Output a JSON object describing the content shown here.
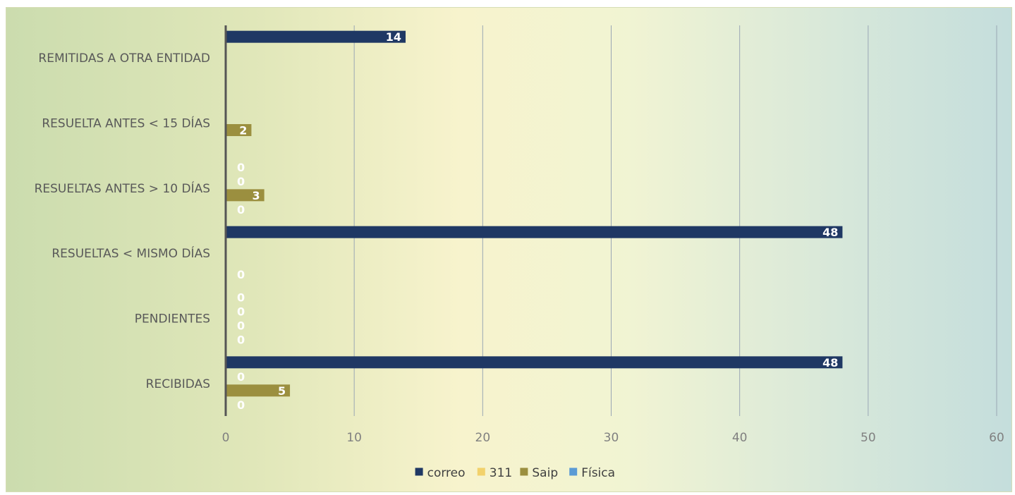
{
  "chart_data": {
    "type": "bar",
    "orientation": "horizontal",
    "categories": [
      "REMITIDAS A OTRA ENTIDAD",
      "RESUELTA ANTES < 15 DÍAS",
      "RESUELTAS ANTES > 10 DÍAS",
      "RESUELTAS < MISMO DÍAS",
      "PENDIENTES",
      "RECIBIDAS"
    ],
    "series": [
      {
        "name": "correo",
        "color": "#1f3864",
        "values": [
          14,
          null,
          0,
          48,
          0,
          48
        ]
      },
      {
        "name": "311",
        "color": "#f2d16b",
        "values": [
          null,
          null,
          0,
          null,
          0,
          0
        ]
      },
      {
        "name": "Saip",
        "color": "#9b8f3f",
        "values": [
          null,
          2,
          3,
          null,
          0,
          5
        ]
      },
      {
        "name": "Física",
        "color": "#5b9bd5",
        "values": [
          null,
          null,
          0,
          0,
          0,
          0
        ]
      }
    ],
    "xlim": [
      0,
      60
    ],
    "xticks": [
      0,
      10,
      20,
      30,
      40,
      50,
      60
    ],
    "grid": true,
    "legend_position": "bottom",
    "title": "",
    "xlabel": "",
    "ylabel": ""
  }
}
